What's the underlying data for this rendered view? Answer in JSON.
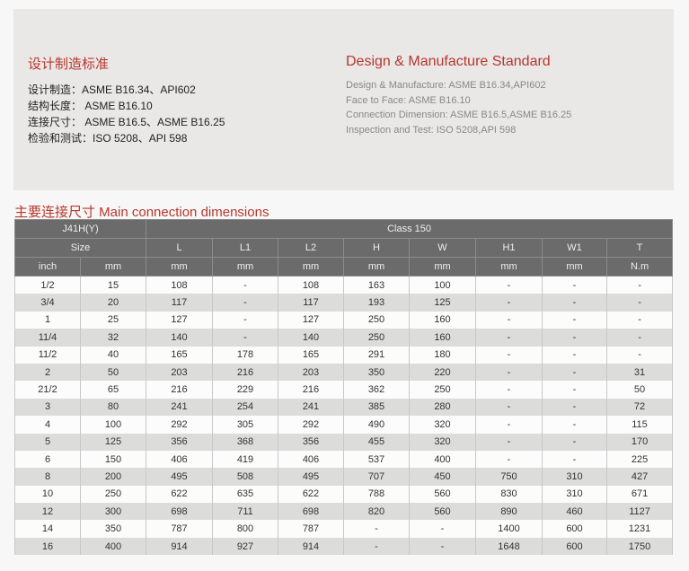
{
  "cn_section": {
    "title": "设计制造标准",
    "lines": [
      "设计制造：ASME B16.34、API602",
      "结构长度： ASME B16.10",
      "连接尺寸： ASME B16.5、ASME B16.25",
      "检验和测试：ISO 5208、API 598"
    ]
  },
  "en_section": {
    "title": "Design & Manufacture Standard",
    "lines": [
      "Design & Manufacture: ASME B16.34,API602",
      "Face to Face: ASME B16.10",
      "Connection Dimension: ASME B16.5,ASME B16.25",
      "Inspection and Test: ISO 5208,API 598"
    ]
  },
  "table": {
    "title": "主要连接尺寸  Main connection dimensions",
    "model": "J41H(Y)",
    "class": "Class 150",
    "size_label": "Size",
    "columns": [
      "L",
      "L1",
      "L2",
      "H",
      "W",
      "H1",
      "W1",
      "T"
    ],
    "units": [
      "inch",
      "mm",
      "mm",
      "mm",
      "mm",
      "mm",
      "mm",
      "mm",
      "mm",
      "N.m"
    ],
    "rows": [
      [
        "1/2",
        "15",
        "108",
        "-",
        "108",
        "163",
        "100",
        "-",
        "-",
        "-"
      ],
      [
        "3/4",
        "20",
        "117",
        "-",
        "117",
        "193",
        "125",
        "-",
        "-",
        "-"
      ],
      [
        "1",
        "25",
        "127",
        "-",
        "127",
        "250",
        "160",
        "-",
        "-",
        "-"
      ],
      [
        "11/4",
        "32",
        "140",
        "-",
        "140",
        "250",
        "160",
        "-",
        "-",
        "-"
      ],
      [
        "11/2",
        "40",
        "165",
        "178",
        "165",
        "291",
        "180",
        "-",
        "-",
        "-"
      ],
      [
        "2",
        "50",
        "203",
        "216",
        "203",
        "350",
        "220",
        "-",
        "-",
        "31"
      ],
      [
        "21/2",
        "65",
        "216",
        "229",
        "216",
        "362",
        "250",
        "-",
        "-",
        "50"
      ],
      [
        "3",
        "80",
        "241",
        "254",
        "241",
        "385",
        "280",
        "-",
        "-",
        "72"
      ],
      [
        "4",
        "100",
        "292",
        "305",
        "292",
        "490",
        "320",
        "-",
        "-",
        "115"
      ],
      [
        "5",
        "125",
        "356",
        "368",
        "356",
        "455",
        "320",
        "-",
        "-",
        "170"
      ],
      [
        "6",
        "150",
        "406",
        "419",
        "406",
        "537",
        "400",
        "-",
        "-",
        "225"
      ],
      [
        "8",
        "200",
        "495",
        "508",
        "495",
        "707",
        "450",
        "750",
        "310",
        "427"
      ],
      [
        "10",
        "250",
        "622",
        "635",
        "622",
        "788",
        "560",
        "830",
        "310",
        "671"
      ],
      [
        "12",
        "300",
        "698",
        "711",
        "698",
        "820",
        "560",
        "890",
        "460",
        "1127"
      ],
      [
        "14",
        "350",
        "787",
        "800",
        "787",
        "-",
        "-",
        "1400",
        "600",
        "1231"
      ],
      [
        "16",
        "400",
        "914",
        "927",
        "914",
        "-",
        "-",
        "1648",
        "600",
        "1750"
      ]
    ]
  }
}
